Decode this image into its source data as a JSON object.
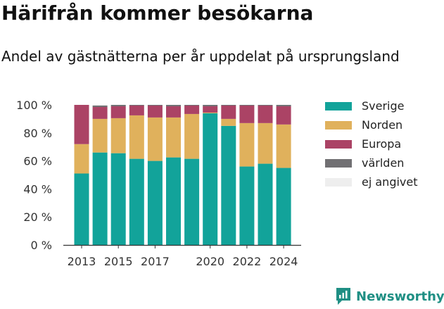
{
  "title": "Härifrån kommer besökarna",
  "subtitle": "Andel av gästnätterna per år uppdelat på ursprungsland",
  "brand": {
    "label": "Newsworthy",
    "icon": "newsworthy-logo-icon",
    "color": "#1f8f84"
  },
  "chart_data": {
    "type": "bar",
    "stacked": true,
    "categories": [
      "2013",
      "2014",
      "2015",
      "2016",
      "2017",
      "2018",
      "2019",
      "2020",
      "2021",
      "2022",
      "2023",
      "2024"
    ],
    "x_tick_labels": [
      "2013",
      "",
      "2015",
      "",
      "2017",
      "",
      "",
      "2020",
      "",
      "2022",
      "",
      "2024"
    ],
    "ylim": [
      0,
      100
    ],
    "y_ticks": [
      0,
      20,
      40,
      60,
      80,
      100
    ],
    "y_tick_labels": [
      "0 %",
      "20 %",
      "40 %",
      "60 %",
      "80 %",
      "100 %"
    ],
    "xlabel": "",
    "ylabel": "",
    "grid": false,
    "legend_position": "right",
    "series": [
      {
        "name": "Sverige",
        "color": "#12a39a",
        "values": [
          51,
          66,
          65.5,
          61.5,
          60,
          62.5,
          61.5,
          94,
          85,
          56,
          58,
          55
        ]
      },
      {
        "name": "Norden",
        "color": "#e0b15c",
        "values": [
          21,
          24,
          25,
          31,
          31,
          28.5,
          32,
          0.5,
          5,
          31,
          29,
          31
        ]
      },
      {
        "name": "Europa",
        "color": "#ab4365",
        "values": [
          28,
          8.5,
          8.5,
          7,
          8.5,
          8,
          6,
          4.5,
          9.5,
          12.5,
          12.5,
          13
        ]
      },
      {
        "name": "världen",
        "color": "#717073",
        "values": [
          0,
          1,
          1,
          0.5,
          0.5,
          1,
          0.5,
          1,
          0.5,
          0.5,
          0.5,
          1
        ]
      },
      {
        "name": "ej angivet",
        "color": "#eeeeee",
        "values": [
          0,
          0.5,
          0,
          0,
          0,
          0,
          0,
          0,
          0,
          0,
          0,
          0
        ]
      }
    ]
  }
}
